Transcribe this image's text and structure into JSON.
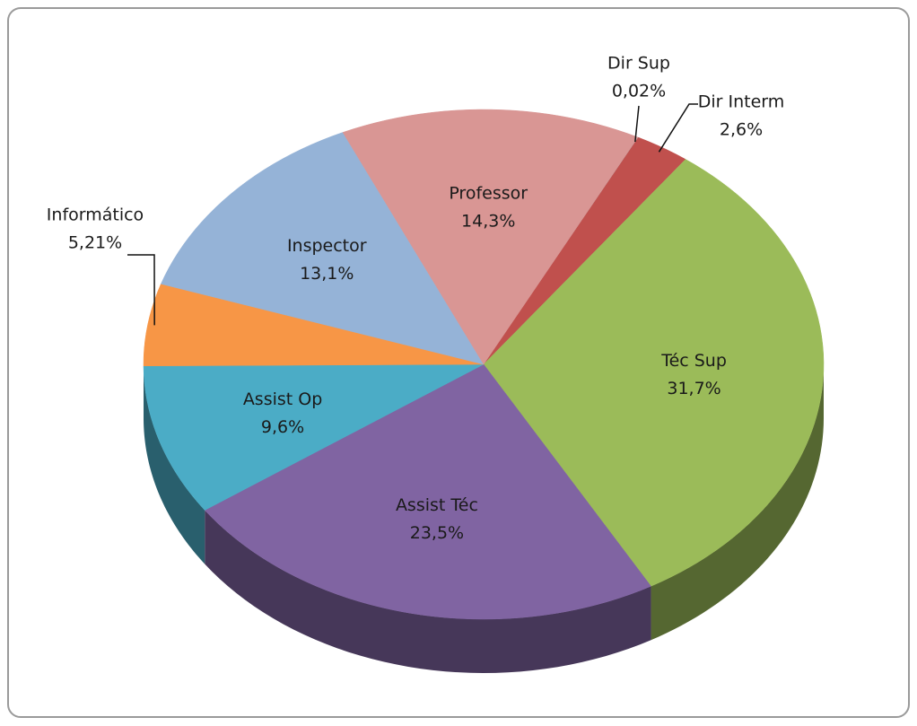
{
  "chart_data": {
    "type": "pie",
    "categories": [
      "Dir Sup",
      "Dir Interm",
      "Téc Sup",
      "Assist Téc",
      "Assist Op",
      "Informático",
      "Inspector",
      "Professor"
    ],
    "values": [
      0.02,
      2.6,
      31.7,
      23.5,
      9.6,
      5.21,
      13.1,
      14.3
    ],
    "value_labels": [
      "0,02%",
      "2,6%",
      "31,7%",
      "23,5%",
      "9,6%",
      "5,21%",
      "13,1%",
      "14,3%"
    ],
    "colors": [
      "#4bacc6",
      "#c0504d",
      "#9bbb59",
      "#8064a2",
      "#4bacc6",
      "#f79646",
      "#95b3d7",
      "#d99694"
    ]
  }
}
